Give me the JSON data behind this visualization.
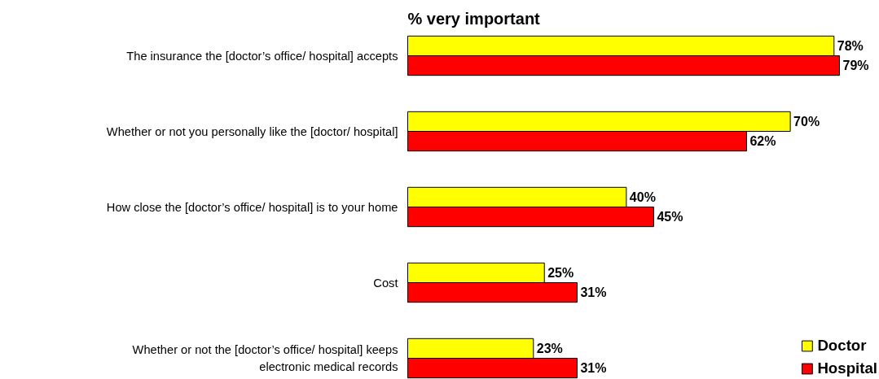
{
  "chart_data": {
    "type": "bar",
    "orientation": "horizontal",
    "title": "% very important",
    "categories": [
      "The insurance the [doctor’s office/ hospital] accepts",
      "Whether or not you personally like the [doctor/ hospital]",
      "How close the [doctor’s office/ hospital] is to your home",
      "Cost",
      "Whether or not the [doctor’s office/ hospital] keeps electronic medical records"
    ],
    "series": [
      {
        "name": "Doctor",
        "color": "#ffff00",
        "values": [
          78,
          70,
          40,
          25,
          23
        ],
        "value_labels": [
          "78%",
          "70%",
          "40%",
          "25%",
          "23%"
        ]
      },
      {
        "name": "Hospital",
        "color": "#ff0000",
        "values": [
          79,
          62,
          45,
          31,
          31
        ],
        "value_labels": [
          "79%",
          "62%",
          "45%",
          "31%",
          "31%"
        ]
      }
    ],
    "legend": "bottom right",
    "grid": false
  }
}
